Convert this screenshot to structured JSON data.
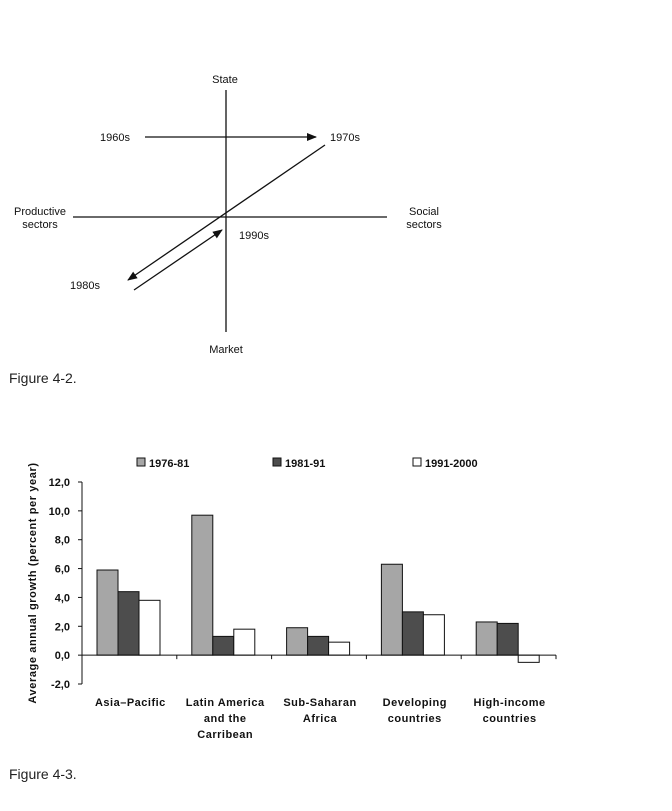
{
  "figure1": {
    "caption": "Figure 4-2.",
    "labels": {
      "top": "State",
      "bottom": "Market",
      "left_line1": "Productive",
      "left_line2": "sectors",
      "right_line1": "Social",
      "right_line2": "sectors",
      "p1960s": "1960s",
      "p1970s": "1970s",
      "p1980s": "1980s",
      "p1990s": "1990s"
    }
  },
  "figure2": {
    "caption": "Figure 4-3."
  },
  "chart_data": {
    "type": "bar",
    "title": "",
    "ylabel": "Average annual growth (percent per year)",
    "xlabel": "",
    "ylim": [
      -2,
      12
    ],
    "yticks": [
      "-2,0",
      "0,0",
      "2,0",
      "4,0",
      "6,0",
      "8,0",
      "10,0",
      "12,0"
    ],
    "ytick_values": [
      -2,
      0,
      2,
      4,
      6,
      8,
      10,
      12
    ],
    "categories": [
      [
        "Asia–Pacific"
      ],
      [
        "Latin America",
        "and the",
        "Carribean"
      ],
      [
        "Sub-Saharan",
        "Africa"
      ],
      [
        "Developing",
        "countries"
      ],
      [
        "High-income",
        "countries"
      ]
    ],
    "legend_position": "top",
    "series": [
      {
        "name": "1976-81",
        "color": "#a6a6a6",
        "values": [
          5.9,
          9.7,
          1.9,
          6.3,
          2.3
        ]
      },
      {
        "name": "1981-91",
        "color": "#4d4d4d",
        "values": [
          4.4,
          1.3,
          1.3,
          3.0,
          2.2
        ]
      },
      {
        "name": "1991-2000",
        "color": "#ffffff",
        "values": [
          3.8,
          1.8,
          0.9,
          2.8,
          -0.5
        ]
      }
    ]
  }
}
